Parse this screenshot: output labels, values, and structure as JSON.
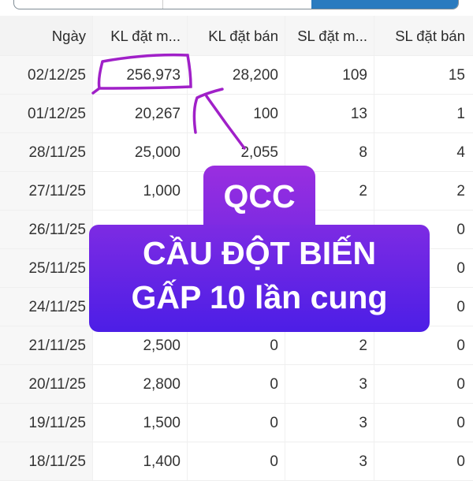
{
  "segmented_control": {
    "active_index": 2,
    "accent": "#2a7bbf"
  },
  "table": {
    "headers": [
      "Ngày",
      "KL đặt m...",
      "KL đặt bán",
      "SL đặt m...",
      "SL đặt bán"
    ],
    "rows": [
      [
        "02/12/25",
        "256,973",
        "28,200",
        "109",
        "15"
      ],
      [
        "01/12/25",
        "20,267",
        "100",
        "13",
        "1"
      ],
      [
        "28/11/25",
        "25,000",
        "2,055",
        "8",
        "4"
      ],
      [
        "27/11/25",
        "1,000",
        "",
        "2",
        "2"
      ],
      [
        "26/11/25",
        "",
        "",
        "",
        "0"
      ],
      [
        "25/11/25",
        "",
        "",
        "",
        "0"
      ],
      [
        "24/11/25",
        "",
        "",
        "",
        "0"
      ],
      [
        "21/11/25",
        "2,500",
        "0",
        "2",
        "0"
      ],
      [
        "20/11/25",
        "2,800",
        "0",
        "3",
        "0"
      ],
      [
        "19/11/25",
        "1,500",
        "0",
        "3",
        "0"
      ],
      [
        "18/11/25",
        "1,400",
        "0",
        "3",
        "0"
      ]
    ]
  },
  "overlay": {
    "line1": "QCC",
    "line2": "CẦU ĐỘT BIẾN",
    "line3": "GẤP 10 lần cung",
    "colors": {
      "top": "#9a2ee0",
      "bottom": "#4c1ee6",
      "annotation": "#a020c8"
    }
  }
}
